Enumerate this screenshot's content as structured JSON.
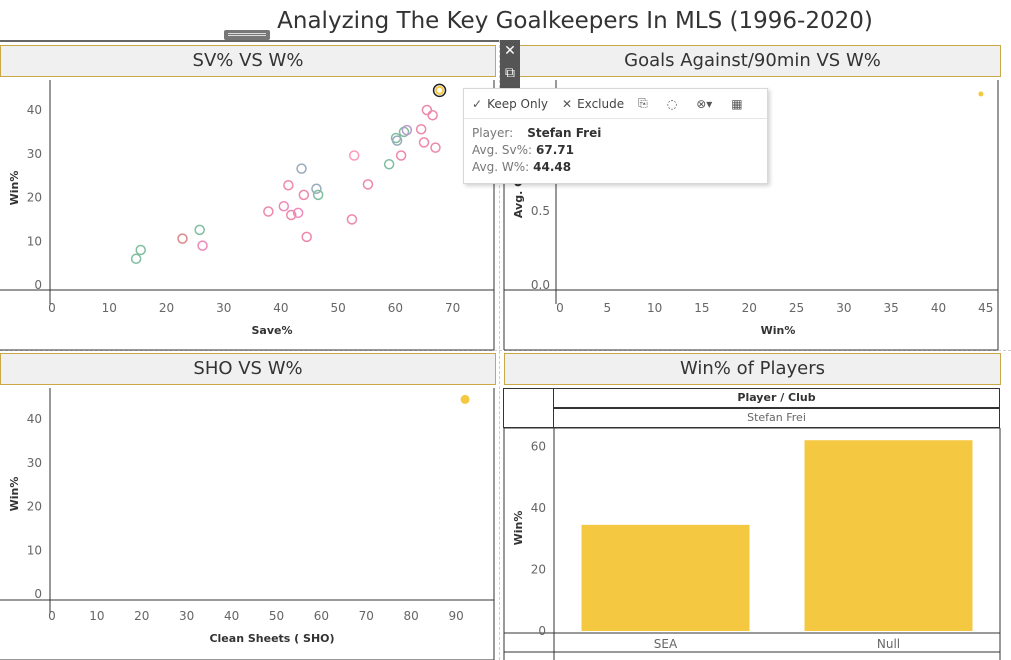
{
  "dashboard": {
    "title": "Analyzing The Key Goalkeepers In MLS (1996-2020)"
  },
  "panels": {
    "sv_vs_w": {
      "title": "SV% VS W%",
      "xlabel": "Save%",
      "ylabel": "Win%"
    },
    "ga_vs_w": {
      "title": "Goals Against/90min VS W%",
      "xlabel": "Win%",
      "ylabel": "Avg. G"
    },
    "sho_vs_w": {
      "title": "SHO VS W%",
      "xlabel": "Clean Sheets ( SHO)",
      "ylabel": "Win%"
    },
    "win_players": {
      "title": "Win% of Players",
      "ylabel": "Win%",
      "col_header": "Player / Club",
      "player_name": "Stefan Frei"
    }
  },
  "tooltip": {
    "actions": [
      {
        "icon": "check-icon",
        "label": "Keep Only"
      },
      {
        "icon": "x-icon",
        "label": "Exclude"
      },
      {
        "icon": "paperclip-icon",
        "label": ""
      },
      {
        "icon": "lightbulb-icon",
        "label": ""
      },
      {
        "icon": "group-icon",
        "label": ""
      },
      {
        "icon": "table-icon",
        "label": ""
      }
    ],
    "rows": [
      {
        "key": "Player:",
        "value": "Stefan Frei"
      },
      {
        "key": "Avg. Sv%:",
        "value": "67.71"
      },
      {
        "key": "Avg. W%:",
        "value": "44.48"
      }
    ]
  },
  "colors": {
    "highlight": "#f5c842",
    "border_gold": "#c8a84b",
    "header_bg": "#f0f0f0"
  },
  "chart_data": [
    {
      "type": "scatter",
      "title": "SV% VS W%",
      "xlabel": "Save%",
      "ylabel": "Win%",
      "xlim": [
        0,
        76
      ],
      "ylim": [
        0,
        48
      ],
      "xticks": [
        0,
        10,
        20,
        30,
        40,
        50,
        60,
        70
      ],
      "yticks": [
        0,
        10,
        20,
        30,
        40
      ],
      "highlight": {
        "x": 67.71,
        "y": 44.48
      },
      "points": [
        {
          "x": 14.7,
          "y": 6.0,
          "c": "#7fbfa0"
        },
        {
          "x": 15.5,
          "y": 8.0,
          "c": "#7fbfa0"
        },
        {
          "x": 22.8,
          "y": 10.6,
          "c": "#d88"
        },
        {
          "x": 25.8,
          "y": 12.6,
          "c": "#7fbfa0"
        },
        {
          "x": 26.3,
          "y": 9.0,
          "c": "#e8b"
        },
        {
          "x": 37.8,
          "y": 16.8,
          "c": "#e8a"
        },
        {
          "x": 40.5,
          "y": 18.0,
          "c": "#e8b"
        },
        {
          "x": 41.3,
          "y": 22.8,
          "c": "#e8a"
        },
        {
          "x": 41.8,
          "y": 16.0,
          "c": "#e8a"
        },
        {
          "x": 43.0,
          "y": 16.5,
          "c": "#e8b"
        },
        {
          "x": 43.6,
          "y": 26.6,
          "c": "#9ab"
        },
        {
          "x": 44.0,
          "y": 20.6,
          "c": "#e8a"
        },
        {
          "x": 44.5,
          "y": 11.0,
          "c": "#e8a"
        },
        {
          "x": 46.2,
          "y": 22.0,
          "c": "#9ab"
        },
        {
          "x": 46.5,
          "y": 20.6,
          "c": "#7fbfa0"
        },
        {
          "x": 52.4,
          "y": 15.0,
          "c": "#e8a"
        },
        {
          "x": 52.8,
          "y": 29.6,
          "c": "#f9b"
        },
        {
          "x": 55.2,
          "y": 23.0,
          "c": "#e8a"
        },
        {
          "x": 58.9,
          "y": 27.6,
          "c": "#7fbfa0"
        },
        {
          "x": 60.1,
          "y": 33.6,
          "c": "#7fbfa0"
        },
        {
          "x": 60.3,
          "y": 33.0,
          "c": "#9ab"
        },
        {
          "x": 61.0,
          "y": 29.6,
          "c": "#e8a"
        },
        {
          "x": 61.5,
          "y": 35.0,
          "c": "#7fbfa0"
        },
        {
          "x": 62.0,
          "y": 35.4,
          "c": "#b9c"
        },
        {
          "x": 64.5,
          "y": 35.6,
          "c": "#e8a"
        },
        {
          "x": 65.0,
          "y": 32.6,
          "c": "#e8a"
        },
        {
          "x": 65.5,
          "y": 40.0,
          "c": "#e8a"
        },
        {
          "x": 66.5,
          "y": 38.8,
          "c": "#e8a"
        },
        {
          "x": 67.0,
          "y": 31.4,
          "c": "#e8a"
        }
      ]
    },
    {
      "type": "scatter",
      "title": "Goals Against/90min VS W%",
      "xlabel": "Win%",
      "ylabel": "Avg. G",
      "xlim": [
        0,
        46.5
      ],
      "xticks": [
        0,
        5,
        10,
        15,
        20,
        25,
        30,
        35,
        40,
        45
      ],
      "yticks": [
        0.0,
        0.5
      ],
      "points": [
        {
          "x": 44.48
        }
      ]
    },
    {
      "type": "scatter",
      "title": "SHO VS W%",
      "xlabel": "Clean Sheets ( SHO)",
      "ylabel": "Win%",
      "xlim": [
        0,
        98
      ],
      "ylim": [
        0,
        48
      ],
      "xticks": [
        0,
        10,
        20,
        30,
        40,
        50,
        60,
        70,
        80,
        90
      ],
      "yticks": [
        0,
        10,
        20,
        30,
        40
      ],
      "points": [
        {
          "x": 92,
          "y": 44.48
        }
      ]
    },
    {
      "type": "bar",
      "title": "Win% of Players",
      "ylabel": "Win%",
      "categories": [
        "SEA",
        "Null"
      ],
      "values": [
        34.5,
        62
      ],
      "ylim": [
        0,
        65
      ],
      "yticks": [
        0,
        20,
        40,
        60
      ]
    }
  ]
}
